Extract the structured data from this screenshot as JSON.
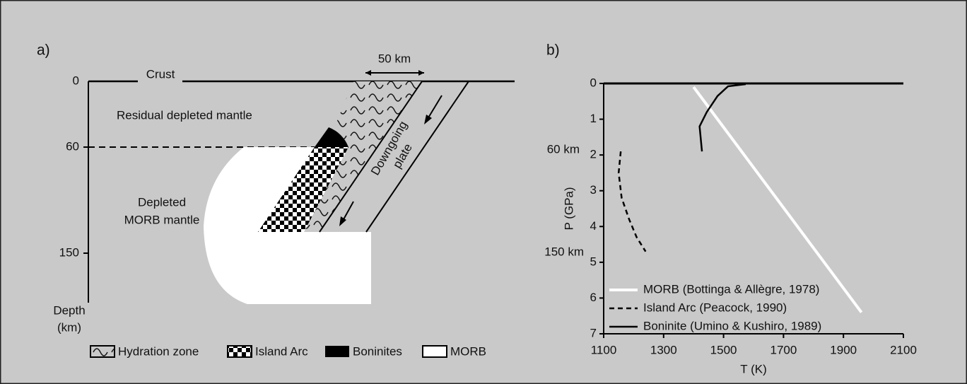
{
  "diagram": {
    "label": "a)",
    "depth_ticks": [
      "0",
      "60",
      "150"
    ],
    "depth_label": [
      "Depth",
      "(km)"
    ],
    "crust": "Crust",
    "scale": "50 km",
    "residual": "Residual depleted mantle",
    "depleted": [
      "Depleted",
      "MORB mantle"
    ],
    "plate": [
      "Downgoing",
      "plate"
    ],
    "legend": [
      "Hydration zone",
      "Island Arc",
      "Boninites",
      "MORB"
    ]
  },
  "chart_data": {
    "type": "line",
    "label": "b)",
    "x_label": "T (K)",
    "y_label": "P (GPa)",
    "xlim": [
      1100,
      2100
    ],
    "xticks": [
      1100,
      1300,
      1500,
      1700,
      1900,
      2100
    ],
    "ylim": [
      7,
      0
    ],
    "yticks": [
      0,
      1,
      2,
      3,
      4,
      5,
      6,
      7
    ],
    "grid": false,
    "legend": "lower left",
    "annotations": [
      "60 km",
      "150 km"
    ],
    "series": [
      {
        "name": "MORB (Bottinga & Allègre, 1978)",
        "color": "#ffffff",
        "style": "solid",
        "x": [
          1400,
          1960
        ],
        "values": [
          0.1,
          6.4
        ]
      },
      {
        "name": "Island Arc (Peacock, 1990)",
        "color": "#000000",
        "style": "dashed",
        "x": [
          1157,
          1150,
          1160,
          1185,
          1210,
          1240
        ],
        "values": [
          1.9,
          2.5,
          3.2,
          3.8,
          4.3,
          4.7
        ]
      },
      {
        "name": "Boninite (Umino & Kushiro, 1989)",
        "color": "#000000",
        "style": "solid",
        "x": [
          1428,
          1420,
          1444,
          1480,
          1515,
          1574
        ],
        "values": [
          1.9,
          1.2,
          0.8,
          0.35,
          0.08,
          0.02
        ]
      }
    ]
  }
}
